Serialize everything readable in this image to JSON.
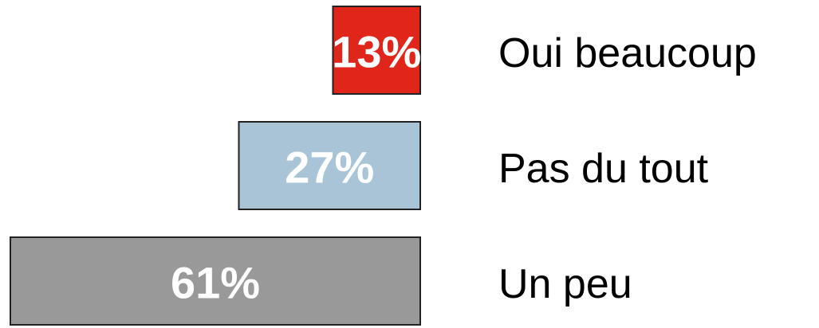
{
  "chart_data": {
    "type": "bar",
    "orientation": "horizontal",
    "categories": [
      "Oui beaucoup",
      "Pas du tout",
      "Un peu"
    ],
    "values": [
      13,
      27,
      61
    ],
    "value_labels": [
      "13%",
      "27%",
      "61%"
    ],
    "colors": [
      "#e0261a",
      "#a9c4d6",
      "#999999"
    ]
  }
}
